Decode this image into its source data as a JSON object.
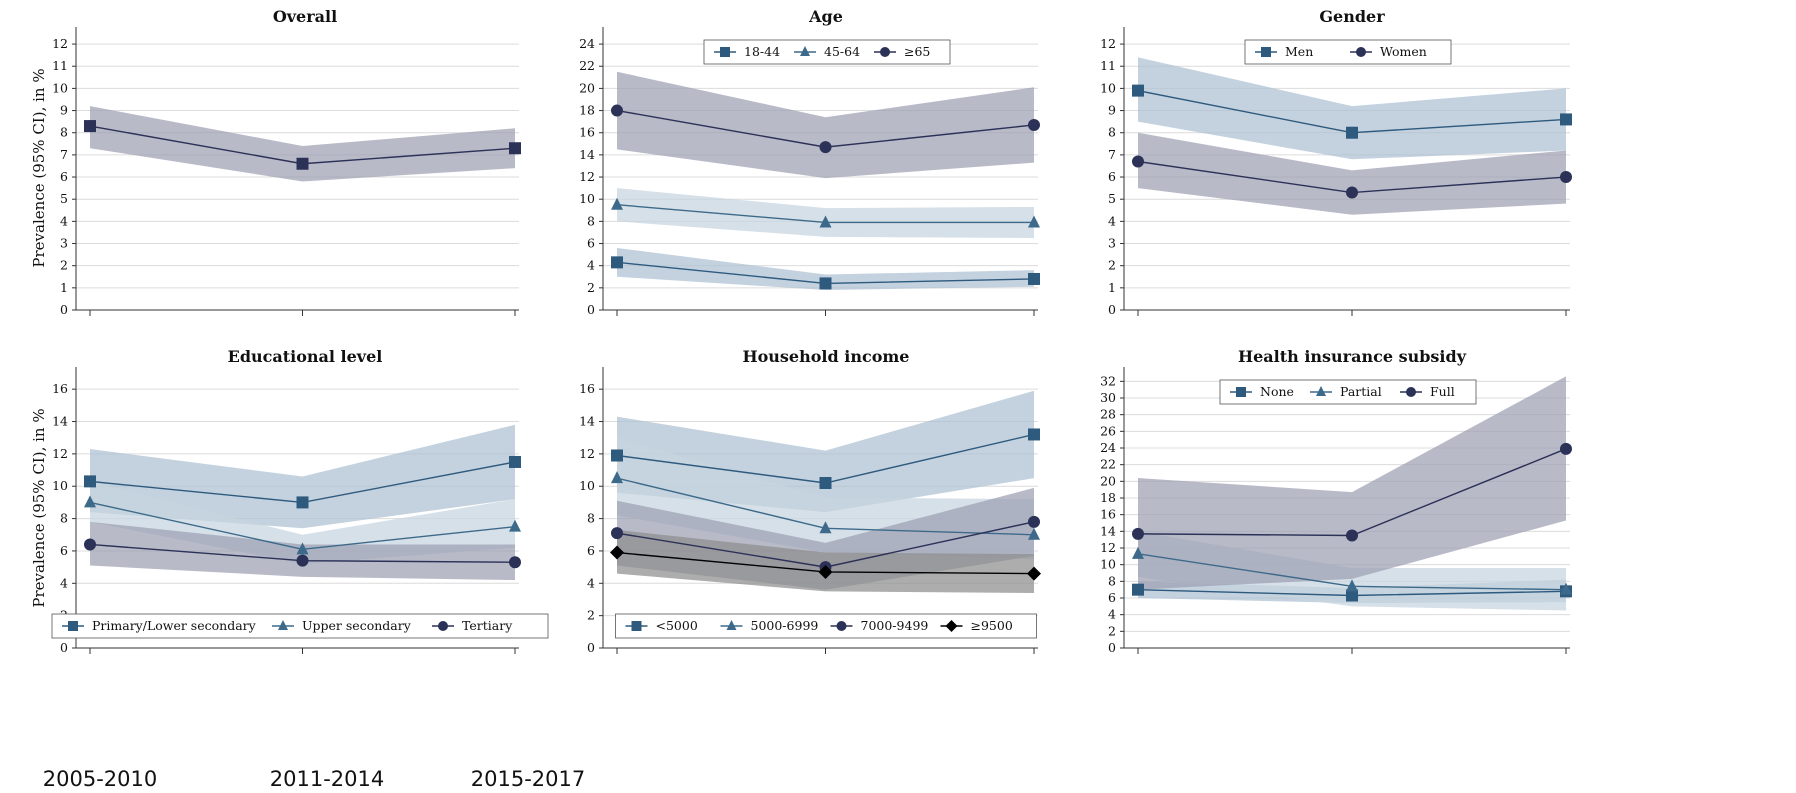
{
  "figure": {
    "ylabel": "Prevalence (95% CI), in %",
    "period_labels": [
      "2005-2010",
      "2011-2014",
      "2015-2017"
    ]
  },
  "colors": {
    "series_blue": "#2e5a7e",
    "series_navy": "#2c3157",
    "series_black": "#000000",
    "band_navy": "#9d9fb3",
    "band_blue": "#adc0d2",
    "band_light": "#c6d4df",
    "band_grey": "#8d8d8d",
    "grid": "#dcdcdc",
    "axis": "#333333"
  },
  "chart_data": [
    {
      "type": "line",
      "title": "Overall",
      "ylim": [
        0,
        12.5
      ],
      "yticks": [
        0,
        1,
        2,
        3,
        4,
        5,
        6,
        7,
        8,
        9,
        10,
        11,
        12
      ],
      "grid": true,
      "legend": "none",
      "series": [
        {
          "marker": "square",
          "color": "#2c3157",
          "band": "#9d9fb3",
          "values": [
            8.3,
            6.6,
            7.3
          ],
          "lower": [
            7.3,
            5.8,
            6.4
          ],
          "upper": [
            9.2,
            7.4,
            8.2
          ]
        }
      ]
    },
    {
      "type": "line",
      "title": "Age",
      "ylim": [
        0,
        25
      ],
      "yticks": [
        0,
        2,
        4,
        6,
        8,
        10,
        12,
        14,
        16,
        18,
        20,
        22,
        24
      ],
      "grid": true,
      "legend": "top",
      "series": [
        {
          "name": "18-44",
          "marker": "square",
          "color": "#2e5a7e",
          "band": "#adc0d2",
          "values": [
            4.3,
            2.4,
            2.8
          ],
          "lower": [
            3.0,
            1.8,
            2.1
          ],
          "upper": [
            5.6,
            3.2,
            3.6
          ]
        },
        {
          "name": "45-64",
          "marker": "triangle",
          "color": "#3d6a8a",
          "band": "#c6d4df",
          "values": [
            9.5,
            7.9,
            7.9
          ],
          "lower": [
            8.0,
            6.6,
            6.5
          ],
          "upper": [
            11.0,
            9.2,
            9.3
          ]
        },
        {
          "name": "≥65",
          "marker": "circle",
          "color": "#2c3157",
          "band": "#9d9fb3",
          "values": [
            18.0,
            14.7,
            16.7
          ],
          "lower": [
            14.5,
            11.9,
            13.3
          ],
          "upper": [
            21.5,
            17.4,
            20.1
          ]
        }
      ]
    },
    {
      "type": "line",
      "title": "Gender",
      "ylim": [
        0,
        12.5
      ],
      "yticks": [
        0,
        1,
        2,
        3,
        4,
        5,
        6,
        7,
        8,
        9,
        10,
        11,
        12
      ],
      "grid": true,
      "legend": "top",
      "series": [
        {
          "name": "Men",
          "marker": "square",
          "color": "#2e5a7e",
          "band": "#adc0d2",
          "values": [
            9.9,
            8.0,
            8.6
          ],
          "lower": [
            8.5,
            6.8,
            7.2
          ],
          "upper": [
            11.4,
            9.2,
            10.0
          ]
        },
        {
          "name": "Women",
          "marker": "circle",
          "color": "#2c3157",
          "band": "#9d9fb3",
          "values": [
            6.7,
            5.3,
            6.0
          ],
          "lower": [
            5.5,
            4.3,
            4.8
          ],
          "upper": [
            8.0,
            6.3,
            7.2
          ]
        }
      ]
    },
    {
      "type": "line",
      "title": "Educational level",
      "ylim": [
        0,
        17
      ],
      "yticks": [
        0,
        2,
        4,
        6,
        8,
        10,
        12,
        14,
        16
      ],
      "grid": true,
      "legend": "bottom",
      "series": [
        {
          "name": "Primary/Lower secondary",
          "marker": "square",
          "color": "#2e5a7e",
          "band": "#adc0d2",
          "values": [
            10.3,
            9.0,
            11.5
          ],
          "lower": [
            8.4,
            7.4,
            9.2
          ],
          "upper": [
            12.3,
            10.6,
            13.8
          ]
        },
        {
          "name": "Upper secondary",
          "marker": "triangle",
          "color": "#3d6a8a",
          "band": "#c6d4df",
          "values": [
            9.0,
            6.1,
            7.5
          ],
          "lower": [
            7.8,
            5.2,
            6.2
          ],
          "upper": [
            10.3,
            7.0,
            9.2
          ]
        },
        {
          "name": "Tertiary",
          "marker": "circle",
          "color": "#2c3157",
          "band": "#9d9fb3",
          "values": [
            6.4,
            5.4,
            5.3
          ],
          "lower": [
            5.1,
            4.4,
            4.2
          ],
          "upper": [
            7.8,
            6.4,
            6.4
          ]
        }
      ]
    },
    {
      "type": "line",
      "title": "Household income",
      "ylim": [
        0,
        17
      ],
      "yticks": [
        0,
        2,
        4,
        6,
        8,
        10,
        12,
        14,
        16
      ],
      "grid": true,
      "legend": "bottom",
      "series": [
        {
          "name": "<5000",
          "marker": "square",
          "color": "#2e5a7e",
          "band": "#adc0d2",
          "values": [
            11.9,
            10.2,
            13.2
          ],
          "lower": [
            9.6,
            8.4,
            10.5
          ],
          "upper": [
            14.3,
            12.2,
            15.9
          ]
        },
        {
          "name": "5000-6999",
          "marker": "triangle",
          "color": "#3d6a8a",
          "band": "#c6d4df",
          "values": [
            10.5,
            7.4,
            7.0
          ],
          "lower": [
            8.2,
            5.9,
            5.5
          ],
          "upper": [
            13.0,
            9.3,
            9.2
          ]
        },
        {
          "name": "7000-9499",
          "marker": "circle",
          "color": "#2c3157",
          "band": "#9d9fb3",
          "values": [
            7.1,
            5.0,
            7.8
          ],
          "lower": [
            5.1,
            3.6,
            5.7
          ],
          "upper": [
            9.1,
            6.5,
            9.9
          ]
        },
        {
          "name": "≥9500",
          "marker": "diamond",
          "color": "#000000",
          "band": "#8d8d8d",
          "values": [
            5.9,
            4.7,
            4.6
          ],
          "lower": [
            4.6,
            3.5,
            3.4
          ],
          "upper": [
            7.3,
            5.9,
            5.8
          ]
        }
      ]
    },
    {
      "type": "line",
      "title": "Health insurance subsidy",
      "ylim": [
        0,
        33
      ],
      "yticks": [
        0,
        2,
        4,
        6,
        8,
        10,
        12,
        14,
        16,
        18,
        20,
        22,
        24,
        26,
        28,
        30,
        32
      ],
      "grid": true,
      "legend": "top",
      "series": [
        {
          "name": "None",
          "marker": "square",
          "color": "#2e5a7e",
          "band": "#adc0d2",
          "values": [
            7.0,
            6.3,
            6.8
          ],
          "lower": [
            6.0,
            5.4,
            5.5
          ],
          "upper": [
            8.0,
            7.2,
            8.2
          ]
        },
        {
          "name": "Partial",
          "marker": "triangle",
          "color": "#3d6a8a",
          "band": "#c6d4df",
          "values": [
            11.3,
            7.4,
            7.0
          ],
          "lower": [
            8.5,
            5.0,
            4.5
          ],
          "upper": [
            14.0,
            9.6,
            9.6
          ]
        },
        {
          "name": "Full",
          "marker": "circle",
          "color": "#2c3157",
          "band": "#9d9fb3",
          "values": [
            13.7,
            13.5,
            23.9
          ],
          "lower": [
            7.0,
            8.3,
            15.3
          ],
          "upper": [
            20.4,
            18.7,
            32.6
          ]
        }
      ]
    }
  ]
}
